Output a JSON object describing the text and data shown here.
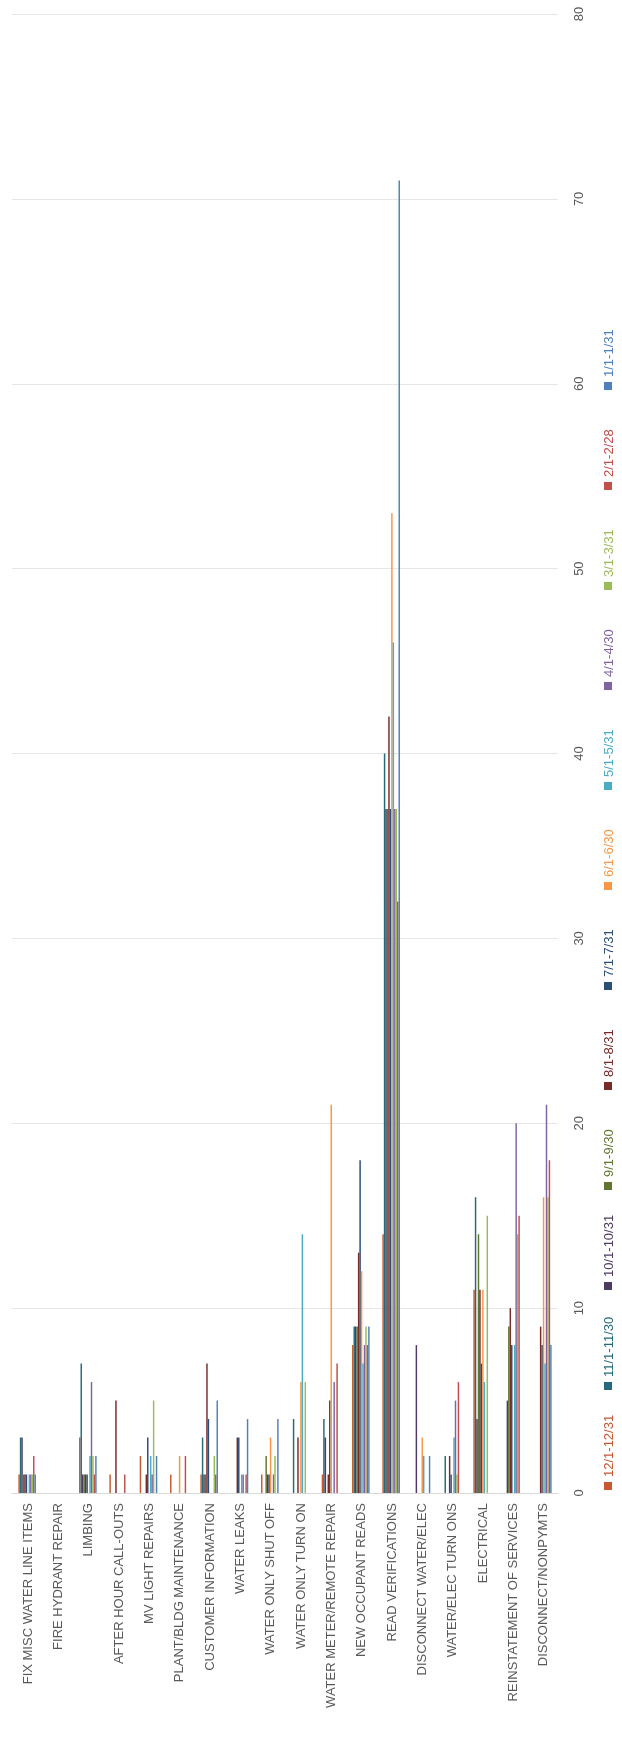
{
  "chart_data": {
    "type": "bar",
    "categories": [
      "FIX MISC WATER LINE ITEMS",
      "FIRE HYDRANT REPAIR",
      "LIMBING",
      "AFTER HOUR CALL-OUTS",
      "MV LIGHT REPAIRS",
      "PLANT/BLDG MAINTENANCE",
      "CUSTOMER INFORMATION",
      "WATER LEAKS",
      "WATER ONLY SHUT OFF",
      "WATER ONLY TURN ON",
      "WATER METER/REMOTE REPAIR",
      "NEW OCCUPANT READS",
      "READ VERIFICATIONS",
      "DISCONNECT WATER/ELEC",
      "WATER/ELEC TURN ONS",
      "ELECTRICAL",
      "REINSTATEMENT OF SERVICES",
      "DISCONNECT/NONPYMTS"
    ],
    "series": [
      {
        "name": "12/1-12/31",
        "color": "#c55a32",
        "values": [
          1,
          null,
          3,
          1,
          2,
          1,
          1,
          null,
          1,
          null,
          1,
          8,
          14,
          null,
          null,
          11,
          null,
          null
        ]
      },
      {
        "name": "11/1-11/30",
        "color": "#276a7c",
        "values": [
          3,
          null,
          7,
          null,
          null,
          null,
          3,
          null,
          null,
          4,
          4,
          9,
          40,
          null,
          2,
          16,
          null,
          null
        ]
      },
      {
        "name": "10/1-10/31",
        "color": "#4d3b62",
        "values": [
          3,
          null,
          1,
          null,
          null,
          null,
          1,
          null,
          null,
          null,
          3,
          9,
          37,
          8,
          null,
          4,
          5,
          null
        ]
      },
      {
        "name": "9/1-9/30",
        "color": "#5f7530",
        "values": [
          1,
          null,
          1,
          null,
          null,
          null,
          1,
          null,
          2,
          null,
          null,
          9,
          37,
          null,
          null,
          14,
          9,
          null
        ]
      },
      {
        "name": "8/1-8/31",
        "color": "#772c2a",
        "values": [
          1,
          null,
          1,
          5,
          1,
          null,
          7,
          3,
          1,
          3,
          1,
          13,
          42,
          null,
          2,
          11,
          10,
          9
        ]
      },
      {
        "name": "7/1-7/31",
        "color": "#2c4d75",
        "values": [
          1,
          null,
          1,
          null,
          3,
          null,
          4,
          3,
          1,
          null,
          5,
          18,
          37,
          null,
          1,
          7,
          8,
          8
        ]
      },
      {
        "name": "6/1-6/30",
        "color": "#f79646",
        "values": [
          null,
          null,
          null,
          null,
          null,
          2,
          null,
          null,
          3,
          6,
          21,
          12,
          53,
          3,
          null,
          11,
          null,
          16
        ]
      },
      {
        "name": "5/1-5/31",
        "color": "#4bacc6",
        "values": [
          1,
          null,
          2,
          null,
          2,
          null,
          null,
          1,
          null,
          14,
          null,
          7,
          46,
          2,
          3,
          6,
          8,
          7
        ]
      },
      {
        "name": "4/1-4/30",
        "color": "#8064a2",
        "values": [
          1,
          null,
          6,
          null,
          1,
          null,
          null,
          1,
          1,
          null,
          6,
          8,
          37,
          null,
          5,
          null,
          20,
          21
        ]
      },
      {
        "name": "3/1-3/31",
        "color": "#9bbb59",
        "values": [
          1,
          null,
          2,
          null,
          5,
          null,
          2,
          null,
          2,
          6,
          null,
          9,
          37,
          null,
          1,
          15,
          14,
          16
        ]
      },
      {
        "name": "2/1-2/28",
        "color": "#c0504d",
        "values": [
          2,
          null,
          1,
          1,
          null,
          2,
          1,
          1,
          null,
          null,
          7,
          8,
          32,
          null,
          6,
          null,
          15,
          18
        ]
      },
      {
        "name": "1/1-1/31",
        "color": "#4f81bd",
        "values": [
          1,
          null,
          2,
          null,
          2,
          null,
          5,
          4,
          4,
          null,
          null,
          9,
          71,
          2,
          null,
          null,
          null,
          8
        ]
      }
    ],
    "ylim": [
      0,
      80
    ],
    "yticks": [
      0,
      10,
      20,
      30,
      40,
      50,
      60,
      70,
      80
    ],
    "grid": "y",
    "legend": "right"
  }
}
